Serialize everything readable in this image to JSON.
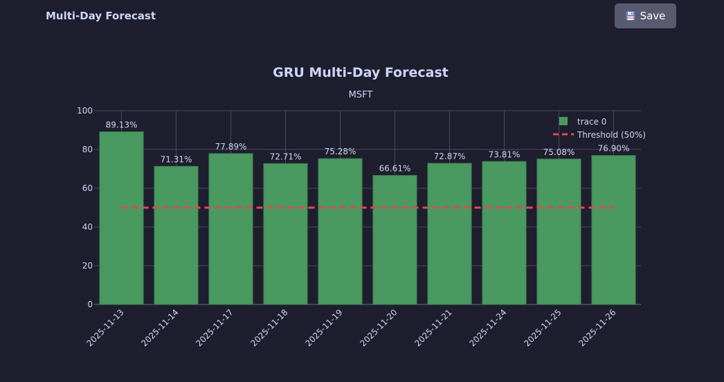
{
  "header": {
    "title": "Multi-Day Forecast",
    "save_label": "Save",
    "save_icon": "floppy-disk-icon"
  },
  "chart_data": {
    "type": "bar",
    "title": "GRU Multi-Day Forecast",
    "subtitle": "MSFT",
    "xlabel": "",
    "ylabel": "",
    "ylim": [
      0,
      100
    ],
    "yticks": [
      0,
      20,
      40,
      60,
      80,
      100
    ],
    "grid": true,
    "legend_position": "top-right",
    "categories": [
      "2025-11-13",
      "2025-11-14",
      "2025-11-17",
      "2025-11-18",
      "2025-11-19",
      "2025-11-20",
      "2025-11-21",
      "2025-11-24",
      "2025-11-25",
      "2025-11-26"
    ],
    "series": [
      {
        "name": "trace 0",
        "type": "bar",
        "color": "#4a9960",
        "values": [
          89.13,
          71.31,
          77.89,
          72.71,
          75.28,
          66.61,
          72.87,
          73.81,
          75.08,
          76.9
        ],
        "labels": [
          "89.13%",
          "71.31%",
          "77.89%",
          "72.71%",
          "75.28%",
          "66.61%",
          "72.87%",
          "73.81%",
          "75.08%",
          "76.90%"
        ]
      },
      {
        "name": "Threshold (50%)",
        "type": "line",
        "style": "dashed",
        "color": "#e5484d",
        "values": [
          50,
          50,
          50,
          50,
          50,
          50,
          50,
          50,
          50,
          50
        ]
      }
    ]
  }
}
